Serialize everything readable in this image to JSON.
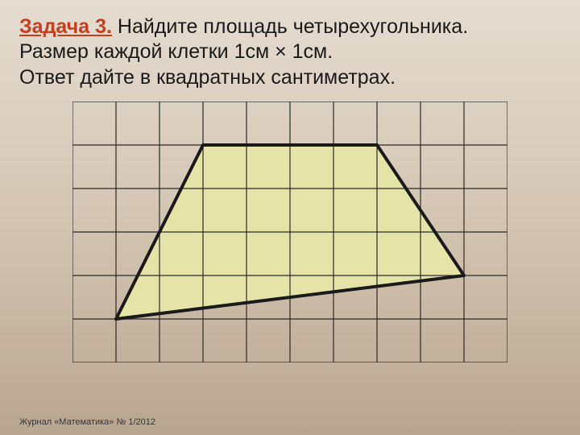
{
  "problem": {
    "title": "Задача 3.",
    "line1_rest": " Найдите площадь четырехугольника.",
    "line2": "Размер каждой клетки 1см × 1см.",
    "line3": "Ответ дайте в квадратных сантиметрах."
  },
  "footer": "Журнал «Математика» № 1/2012",
  "diagram": {
    "type": "grid-polygon",
    "grid_cols": 10,
    "grid_rows": 6,
    "cell_size": 54,
    "grid_line_color": "#2a2a2a",
    "grid_line_width": 1.2,
    "grid_background": "transparent",
    "polygon_points": [
      [
        1,
        5
      ],
      [
        3,
        1
      ],
      [
        7,
        1
      ],
      [
        9,
        4
      ]
    ],
    "polygon_fill": "#e6e3a8",
    "polygon_stroke": "#1a1a1a",
    "polygon_stroke_width": 4
  },
  "colors": {
    "title_color": "#c04020",
    "text_color": "#1a1a1a",
    "bg_gradient_top": "#e5dcd0",
    "bg_gradient_bottom": "#b8a690"
  }
}
